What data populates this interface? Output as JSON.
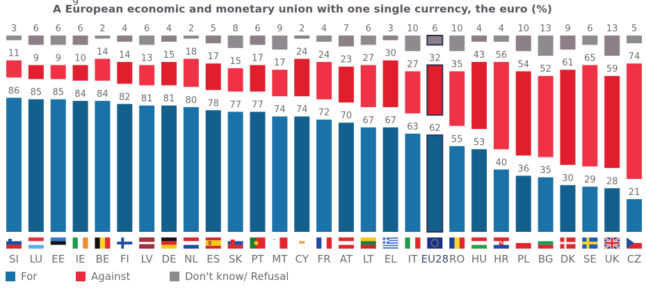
{
  "chart_data": {
    "type": "bar",
    "stacked": true,
    "title": "A European economic and monetary union with one single currency, the euro  (%)",
    "xlabel": "",
    "ylabel": "",
    "ylim": [
      0,
      100
    ],
    "grid": false,
    "legend_position": "bottom-left",
    "categories": [
      "SI",
      "LU",
      "EE",
      "IE",
      "BE",
      "FI",
      "LV",
      "DE",
      "NL",
      "ES",
      "SK",
      "PT",
      "MT",
      "CY",
      "FR",
      "AT",
      "LT",
      "EL",
      "IT",
      "EU28",
      "RO",
      "HU",
      "HR",
      "PL",
      "BG",
      "DK",
      "SE",
      "UK",
      "CZ"
    ],
    "highlight_category": "EU28",
    "series": [
      {
        "name": "For",
        "color": "#1a72a8",
        "values": [
          86,
          85,
          85,
          84,
          84,
          82,
          81,
          81,
          80,
          78,
          77,
          77,
          74,
          74,
          72,
          70,
          67,
          67,
          63,
          62,
          55,
          53,
          40,
          36,
          35,
          30,
          29,
          28,
          21
        ]
      },
      {
        "name": "Against",
        "color": "#ea2a3c",
        "values": [
          11,
          9,
          9,
          10,
          14,
          14,
          13,
          15,
          18,
          17,
          15,
          17,
          17,
          24,
          24,
          23,
          27,
          30,
          27,
          32,
          35,
          43,
          56,
          54,
          52,
          61,
          65,
          59,
          74
        ]
      },
      {
        "name": "Don't know/ Refusal",
        "color": "#8e8a8e",
        "values": [
          3,
          6,
          6,
          6,
          2,
          4,
          6,
          4,
          2,
          5,
          8,
          6,
          9,
          2,
          4,
          7,
          6,
          3,
          10,
          6,
          10,
          4,
          4,
          10,
          13,
          9,
          6,
          13,
          5
        ]
      }
    ]
  },
  "flags": {
    "SI": "slovenia-flag",
    "LU": "luxembourg-flag",
    "EE": "estonia-flag",
    "IE": "ireland-flag",
    "BE": "belgium-flag",
    "FI": "finland-flag",
    "LV": "latvia-flag",
    "DE": "germany-flag",
    "NL": "netherlands-flag",
    "ES": "spain-flag",
    "SK": "slovakia-flag",
    "PT": "portugal-flag",
    "MT": "malta-flag",
    "CY": "cyprus-flag",
    "FR": "france-flag",
    "AT": "austria-flag",
    "LT": "lithuania-flag",
    "EL": "greece-flag",
    "IT": "italy-flag",
    "EU28": "eu-flag",
    "RO": "romania-flag",
    "HU": "hungary-flag",
    "HR": "croatia-flag",
    "PL": "poland-flag",
    "BG": "bulgaria-flag",
    "DK": "denmark-flag",
    "SE": "sweden-flag",
    "UK": "uk-flag",
    "CZ": "czech-flag"
  },
  "legend": {
    "items": [
      {
        "label": "For",
        "color": "#1a72a8"
      },
      {
        "label": "Against",
        "color": "#ea2a3c"
      },
      {
        "label": "Don't know/ Refusal",
        "color": "#8e8a8e"
      }
    ]
  }
}
